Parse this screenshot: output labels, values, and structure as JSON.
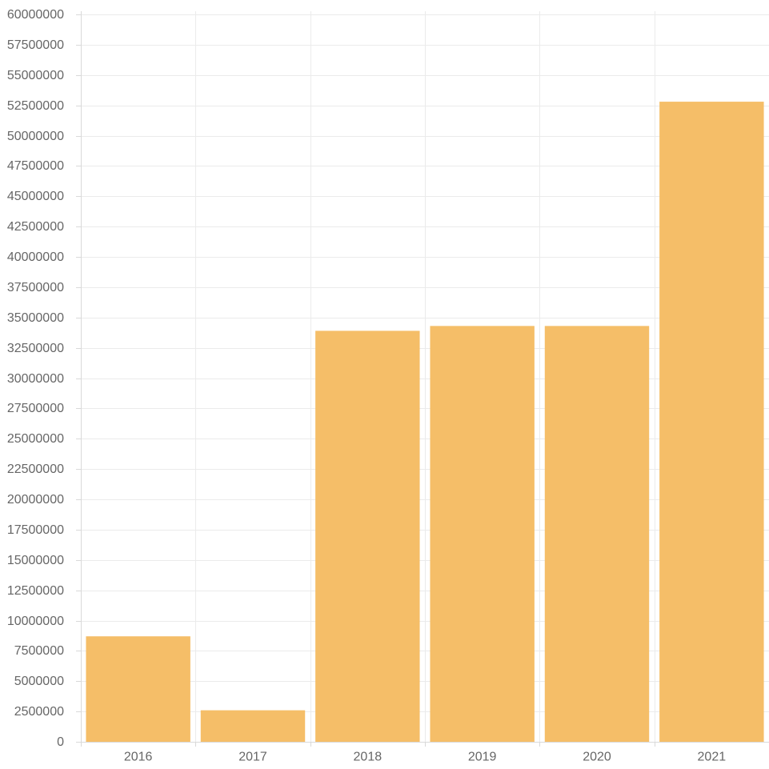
{
  "chart_data": {
    "type": "bar",
    "title": "",
    "xlabel": "",
    "ylabel": "",
    "categories": [
      "2016",
      "2017",
      "2018",
      "2019",
      "2020",
      "2021"
    ],
    "values": [
      8700000,
      2600000,
      33900000,
      34300000,
      34300000,
      52800000
    ],
    "ylim": [
      0,
      60000000
    ],
    "ytick_step": 2500000,
    "y_ticks": [
      "0",
      "2500000",
      "5000000",
      "7500000",
      "10000000",
      "12500000",
      "15000000",
      "17500000",
      "20000000",
      "22500000",
      "25000000",
      "27500000",
      "30000000",
      "32500000",
      "35000000",
      "37500000",
      "40000000",
      "42500000",
      "45000000",
      "47500000",
      "50000000",
      "52500000",
      "55000000",
      "57500000",
      "60000000"
    ],
    "bar_color": "#f5be68",
    "grid": true,
    "legend": "none"
  }
}
